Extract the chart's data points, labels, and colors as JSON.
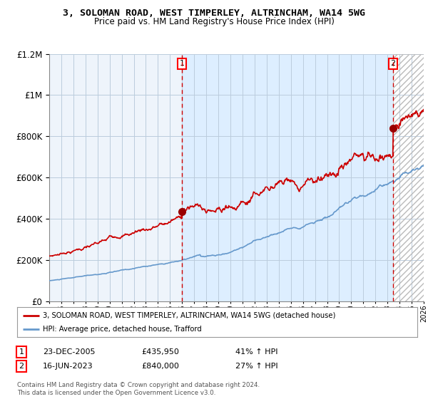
{
  "title1": "3, SOLOMAN ROAD, WEST TIMPERLEY, ALTRINCHAM, WA14 5WG",
  "title2": "Price paid vs. HM Land Registry's House Price Index (HPI)",
  "x_start_year": 1995,
  "x_end_year": 2026,
  "y_min": 0,
  "y_max": 1200000,
  "sale1_date": 2005.975,
  "sale1_price": 435950,
  "sale1_label": "1",
  "sale1_date_str": "23-DEC-2005",
  "sale1_price_str": "£435,950",
  "sale1_pct": "41% ↑ HPI",
  "sale2_date": 2023.46,
  "sale2_price": 840000,
  "sale2_label": "2",
  "sale2_date_str": "16-JUN-2023",
  "sale2_price_str": "£840,000",
  "sale2_pct": "27% ↑ HPI",
  "line1_color": "#cc0000",
  "line2_color": "#6699cc",
  "dot_color": "#990000",
  "fill_color": "#ddeeff",
  "hatch_color": "#cccccc",
  "legend1": "3, SOLOMAN ROAD, WEST TIMPERLEY, ALTRINCHAM, WA14 5WG (detached house)",
  "legend2": "HPI: Average price, detached house, Trafford",
  "footer": "Contains HM Land Registry data © Crown copyright and database right 2024.\nThis data is licensed under the Open Government Licence v3.0.",
  "background_color": "#ffffff",
  "grid_color": "#bbccdd",
  "chart_bg": "#eef4fb"
}
